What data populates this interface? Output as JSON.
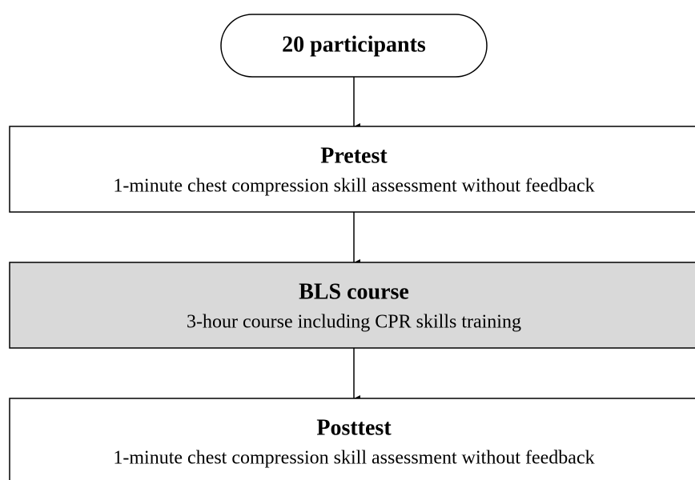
{
  "nodes": [
    {
      "label": "20 participants"
    },
    {
      "label": "Pretest",
      "detail": "1-minute chest compression skill assessment without feedback"
    },
    {
      "label": "BLS course",
      "detail": "3-hour course including CPR skills training"
    },
    {
      "label": "Posttest",
      "detail": "1-minute chest compression skill assessment without feedback"
    }
  ]
}
